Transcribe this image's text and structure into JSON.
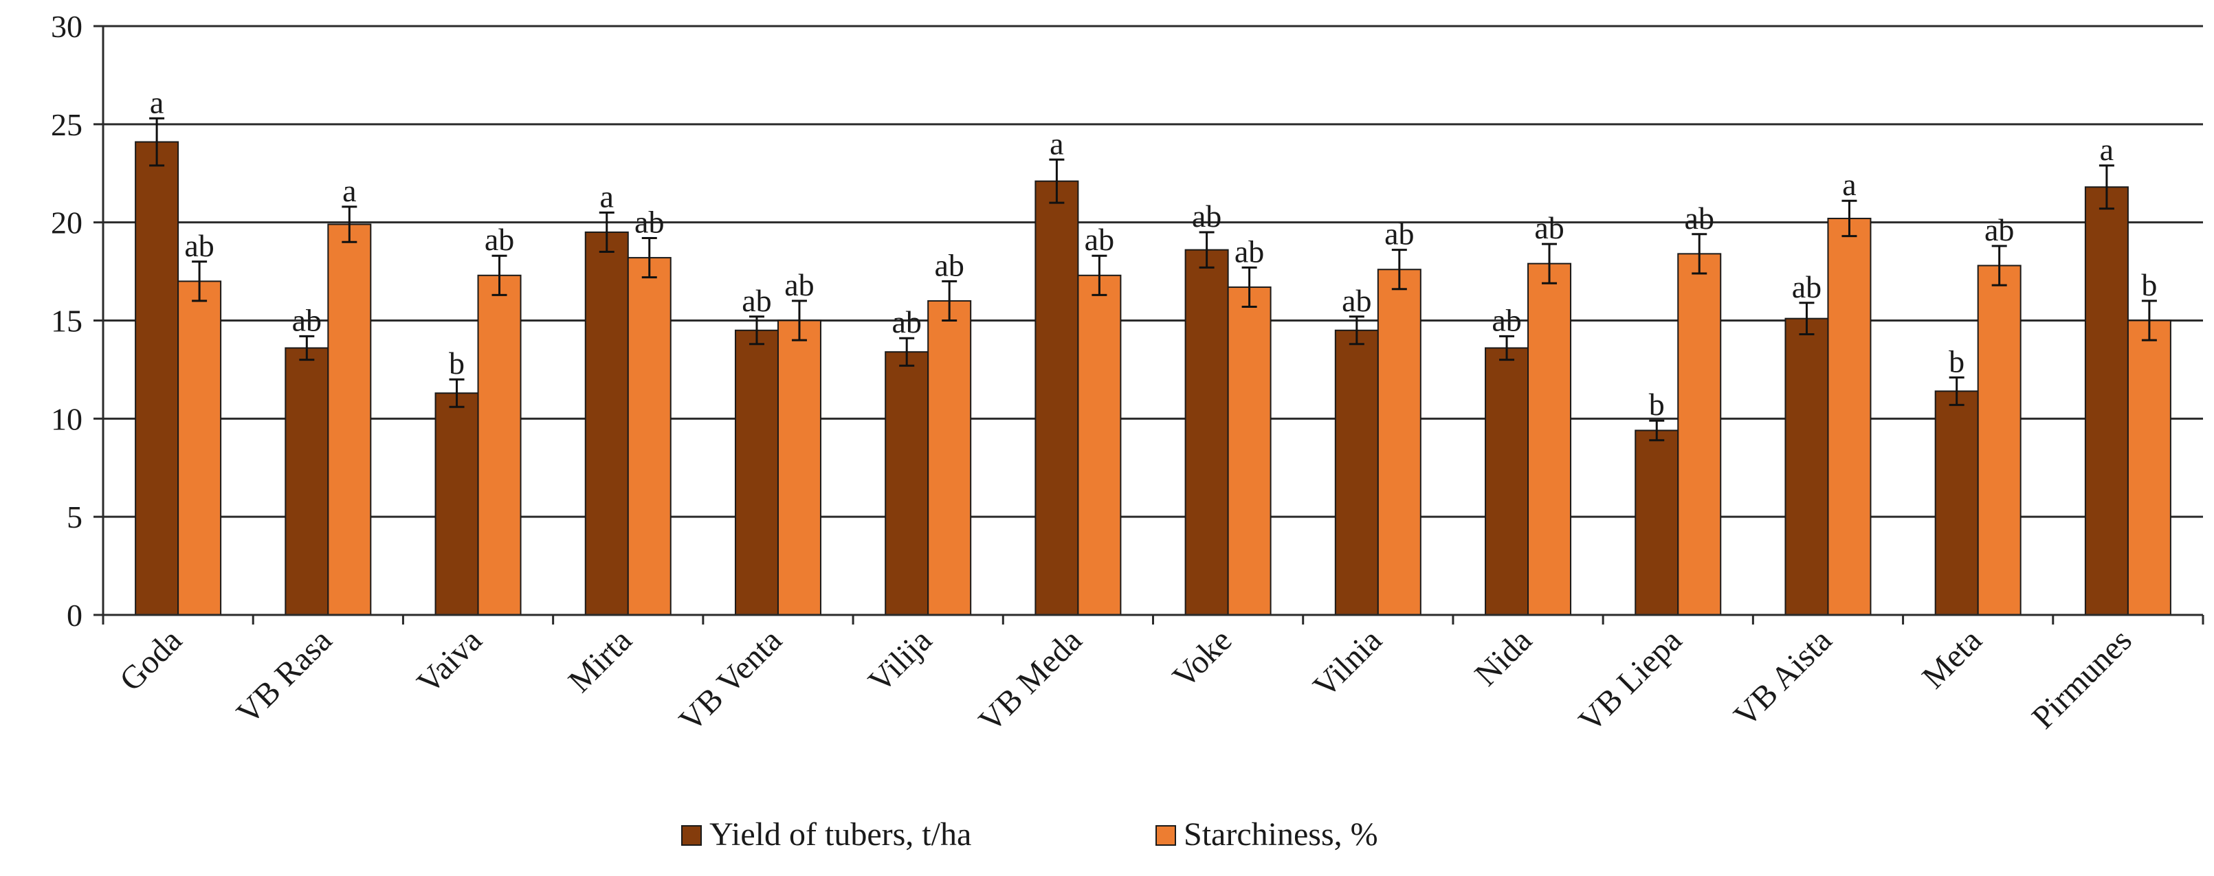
{
  "chart_data": {
    "type": "bar",
    "title": "",
    "xlabel": "",
    "ylabel": "",
    "ylim": [
      0,
      30
    ],
    "yticks": [
      0,
      5,
      10,
      15,
      20,
      25,
      30
    ],
    "grid": true,
    "legend_position": "bottom",
    "categories": [
      "Goda",
      "VB Rasa",
      "Vaiva",
      "Mirta",
      "VB Venta",
      "Vilija",
      "VB Meda",
      "Voke",
      "Vilnia",
      "Nida",
      "VB Liepa",
      "VB Aista",
      "Meta",
      "Pirmunes"
    ],
    "series": [
      {
        "name": "Yield of tubers, t/ha",
        "color": "#843c0c",
        "values": [
          24.1,
          13.6,
          11.3,
          19.5,
          14.5,
          13.4,
          22.1,
          18.6,
          14.5,
          13.6,
          9.4,
          15.1,
          11.4,
          21.8
        ],
        "errors": [
          1.2,
          0.6,
          0.7,
          1.0,
          0.7,
          0.7,
          1.1,
          0.9,
          0.7,
          0.6,
          0.5,
          0.8,
          0.7,
          1.1
        ],
        "significance": [
          "a",
          "ab",
          "b",
          "a",
          "ab",
          "ab",
          "a",
          "ab",
          "ab",
          "ab",
          "b",
          "ab",
          "b",
          "a"
        ]
      },
      {
        "name": "Starchiness, %",
        "color": "#ed7d31",
        "values": [
          17.0,
          19.9,
          17.3,
          18.2,
          15.0,
          16.0,
          17.3,
          16.7,
          17.6,
          17.9,
          18.4,
          20.2,
          17.8,
          15.0
        ],
        "errors": [
          1.0,
          0.9,
          1.0,
          1.0,
          1.0,
          1.0,
          1.0,
          1.0,
          1.0,
          1.0,
          1.0,
          0.9,
          1.0,
          1.0
        ],
        "significance": [
          "ab",
          "a",
          "ab",
          "ab",
          "ab",
          "ab",
          "ab",
          "ab",
          "ab",
          "ab",
          "ab",
          "a",
          "ab",
          "b"
        ]
      }
    ]
  }
}
